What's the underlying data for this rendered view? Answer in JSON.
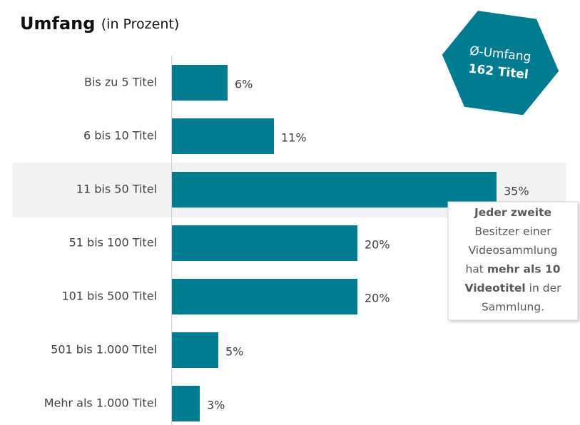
{
  "chart_data": {
    "type": "bar",
    "orientation": "horizontal",
    "title": "Umfang",
    "subtitle": "(in Prozent)",
    "categories": [
      "Bis zu 5 Titel",
      "6 bis 10 Titel",
      "11 bis 50 Titel",
      "51 bis 100 Titel",
      "101 bis 500 Titel",
      "501 bis 1.000 Titel",
      "Mehr als 1.000 Titel"
    ],
    "values": [
      6,
      11,
      35,
      20,
      20,
      5,
      3
    ],
    "value_labels": [
      "6%",
      "11%",
      "35%",
      "20%",
      "20%",
      "5%",
      "3%"
    ],
    "color": "#007b8f",
    "xlim": [
      0,
      40
    ],
    "highlight_index": 2,
    "badge": {
      "label": "Ø-Umfang",
      "value": "162 Titel"
    },
    "callout": [
      [
        {
          "text": "Jeder zweite",
          "bold": true
        }
      ],
      [
        {
          "text": "Besitzer einer",
          "bold": false
        }
      ],
      [
        {
          "text": "Videosammlung",
          "bold": false
        }
      ],
      [
        {
          "text": "hat ",
          "bold": false
        },
        {
          "text": "mehr als 10",
          "bold": true
        }
      ],
      [
        {
          "text": "Videotitel",
          "bold": true
        },
        {
          "text": " in der",
          "bold": false
        }
      ],
      [
        {
          "text": "Sammlung.",
          "bold": false
        }
      ]
    ]
  }
}
